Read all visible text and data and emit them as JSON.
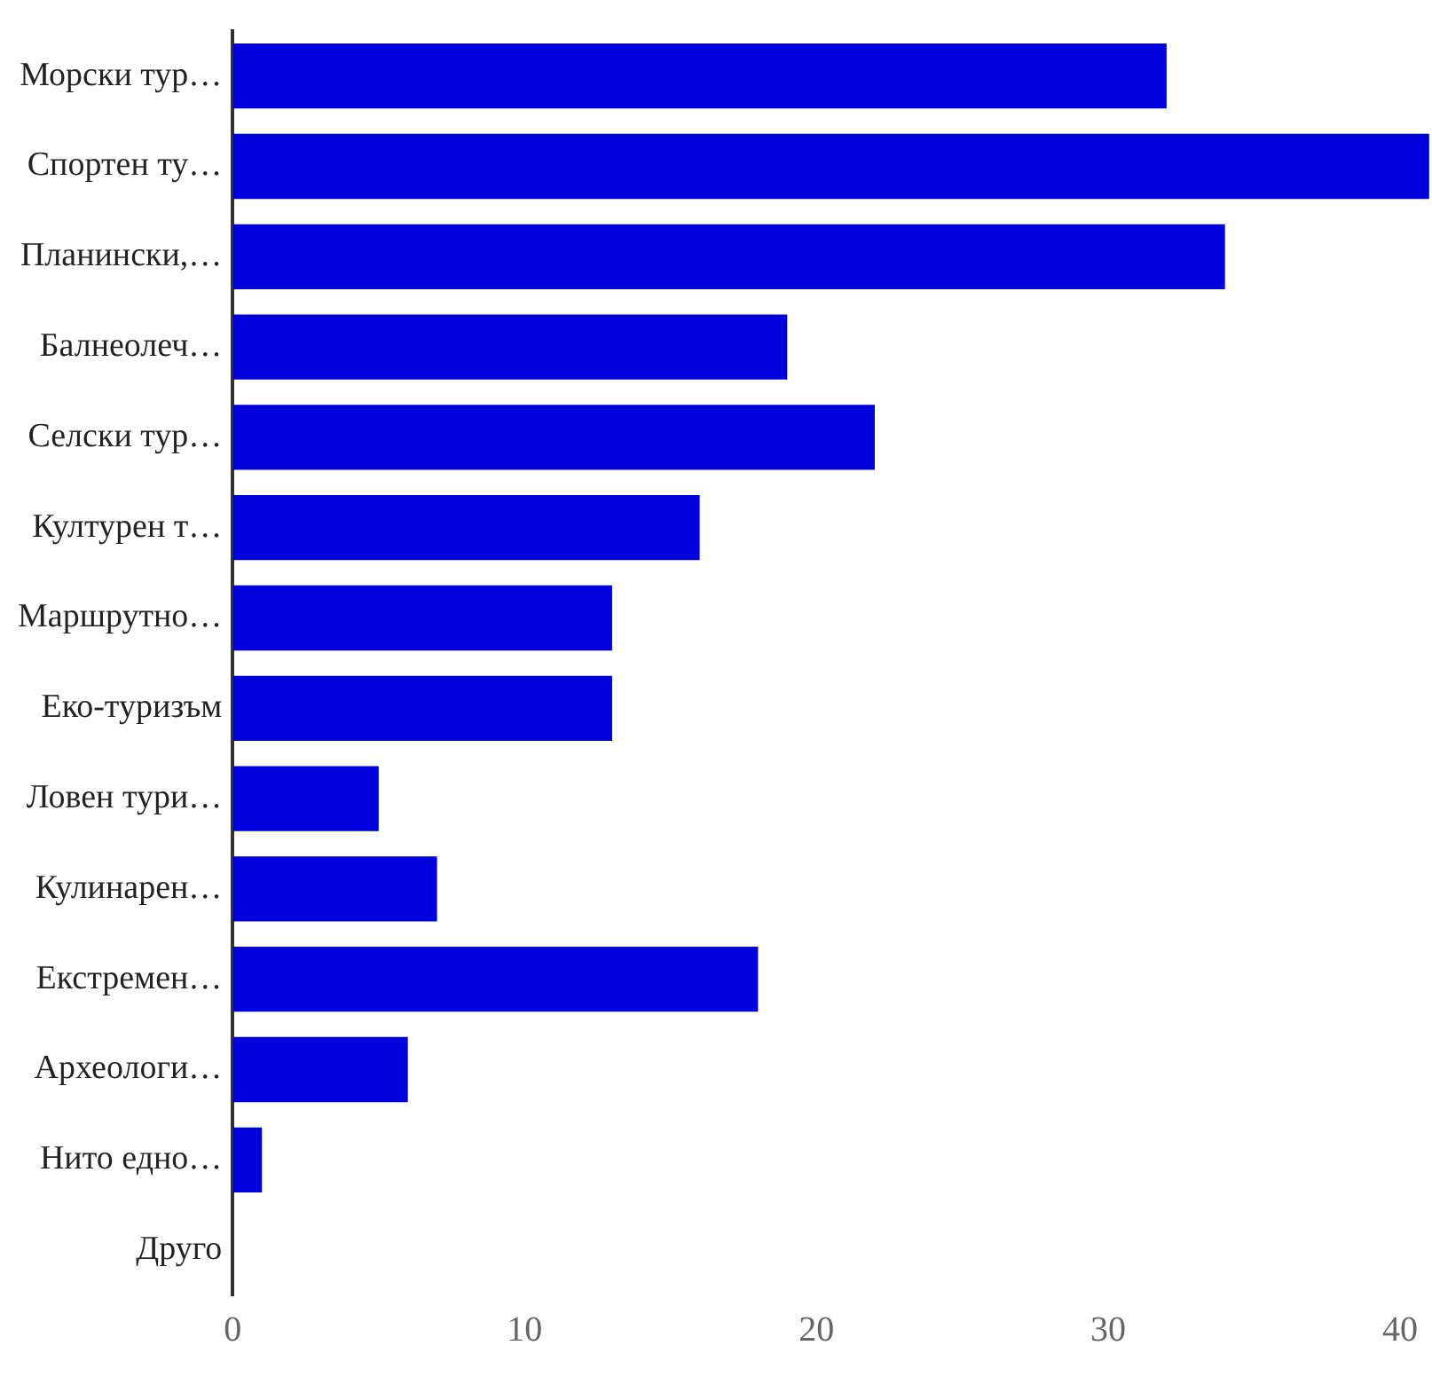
{
  "chart_data": {
    "type": "bar",
    "orientation": "horizontal",
    "categories": [
      "Морски тур…",
      "Спортен ту…",
      "Планински,…",
      "Балнеолеч…",
      "Селски тур…",
      "Културен т…",
      "Маршрутно…",
      "Еко-туризъм",
      "Ловен тури…",
      "Кулинарен…",
      "Екстремен…",
      "Археологи…",
      "Нито едно…",
      "Друго"
    ],
    "values": [
      32,
      41,
      34,
      19,
      22,
      16,
      13,
      13,
      5,
      7,
      18,
      6,
      1,
      0
    ],
    "color": "#0000dd",
    "xlim": [
      0,
      41
    ],
    "xticks": [
      0,
      10,
      20,
      30,
      40
    ],
    "grid": false,
    "legend": false
  }
}
